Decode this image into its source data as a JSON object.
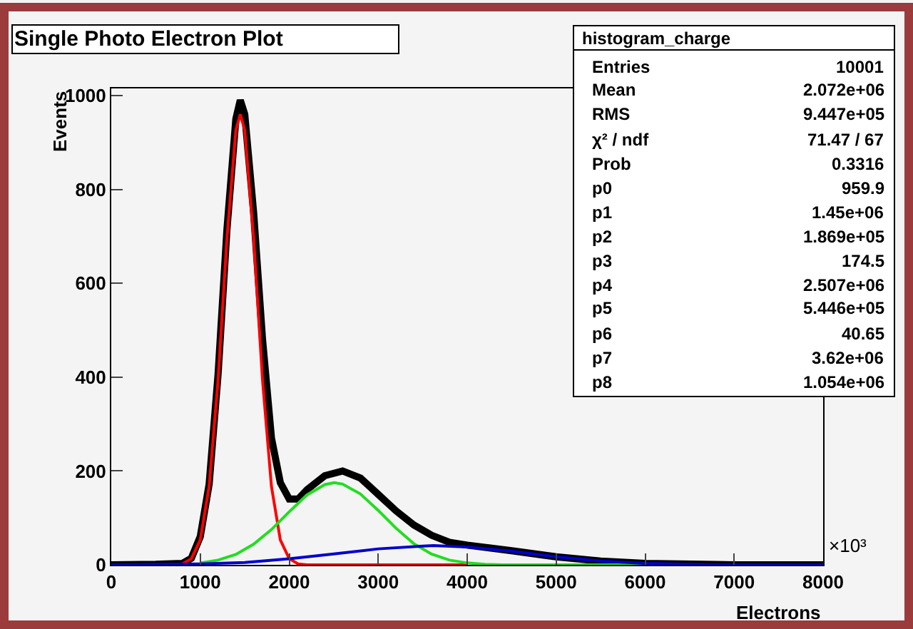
{
  "chart_data": {
    "type": "line",
    "title": "Single Photo Electron Plot",
    "xlabel": "Electrons",
    "ylabel": "Events",
    "xlim": [
      0,
      8000
    ],
    "xticks": [
      0,
      1000,
      2000,
      3000,
      4000,
      5000,
      6000,
      7000,
      8000
    ],
    "ylim": [
      0,
      1015
    ],
    "yticks": [
      0,
      200,
      400,
      600,
      800,
      1000
    ],
    "grid": false,
    "marker": "none",
    "line_style": "solid",
    "series": [
      {
        "color": "#000000",
        "x": [
          0,
          500,
          800,
          900,
          1000,
          1100,
          1200,
          1300,
          1400,
          1450,
          1500,
          1600,
          1700,
          1800,
          1900,
          2000,
          2100,
          2200,
          2400,
          2600,
          2800,
          3000,
          3200,
          3400,
          3600,
          3800,
          4000,
          4500,
          5000,
          5500,
          6000,
          7000,
          8000
        ],
        "values": [
          0,
          1,
          3,
          14,
          60,
          172,
          405,
          715,
          950,
          990,
          960,
          750,
          480,
          270,
          175,
          140,
          140,
          160,
          190,
          200,
          185,
          150,
          115,
          85,
          63,
          48,
          42,
          30,
          17,
          8,
          3,
          0,
          0
        ]
      },
      {
        "color": "#ff0000",
        "x": [
          600,
          800,
          900,
          1000,
          1100,
          1200,
          1300,
          1400,
          1450,
          1500,
          1600,
          1700,
          1800,
          1900,
          2000,
          2100,
          2200,
          4000
        ],
        "values": [
          0,
          2,
          13,
          53,
          167,
          393,
          696,
          926,
          960,
          926,
          696,
          393,
          167,
          53,
          13,
          2,
          0,
          0
        ]
      },
      {
        "color": "#22dd22",
        "x": [
          1000,
          1200,
          1400,
          1600,
          1800,
          2000,
          2200,
          2400,
          2507,
          2600,
          2800,
          3000,
          3200,
          3400,
          3600,
          3800,
          4000,
          4200,
          4400,
          6000
        ],
        "values": [
          4,
          10,
          22,
          44,
          75,
          113,
          149,
          171,
          175,
          172,
          151,
          116,
          78,
          45,
          23,
          10,
          4,
          1,
          0,
          0
        ]
      },
      {
        "color": "#0000cc",
        "x": [
          0,
          500,
          1000,
          1500,
          2000,
          2500,
          3000,
          3500,
          3620,
          4000,
          4500,
          5000,
          5500,
          6000,
          6500,
          7000,
          8000
        ],
        "values": [
          0,
          1,
          2,
          5,
          13,
          23,
          34,
          40,
          41,
          38,
          29,
          17,
          8,
          3,
          1,
          0,
          0
        ]
      }
    ],
    "annotations": [
      "histogram_charge",
      "Entries",
      "10001",
      "Mean",
      "2.072e+06",
      "RMS",
      "9.447e+05",
      "χ² / ndf",
      "71.47 / 67",
      "Prob",
      "0.3316",
      "p0",
      "959.9",
      "p1",
      "1.45e+06",
      "p2",
      "1.869e+05",
      "p3",
      "174.5",
      "p4",
      "2.507e+06",
      "p5",
      "5.446e+05",
      "p6",
      "40.65",
      "p7",
      "3.62e+06",
      "p8",
      "1.054e+06",
      "×10³"
    ]
  }
}
